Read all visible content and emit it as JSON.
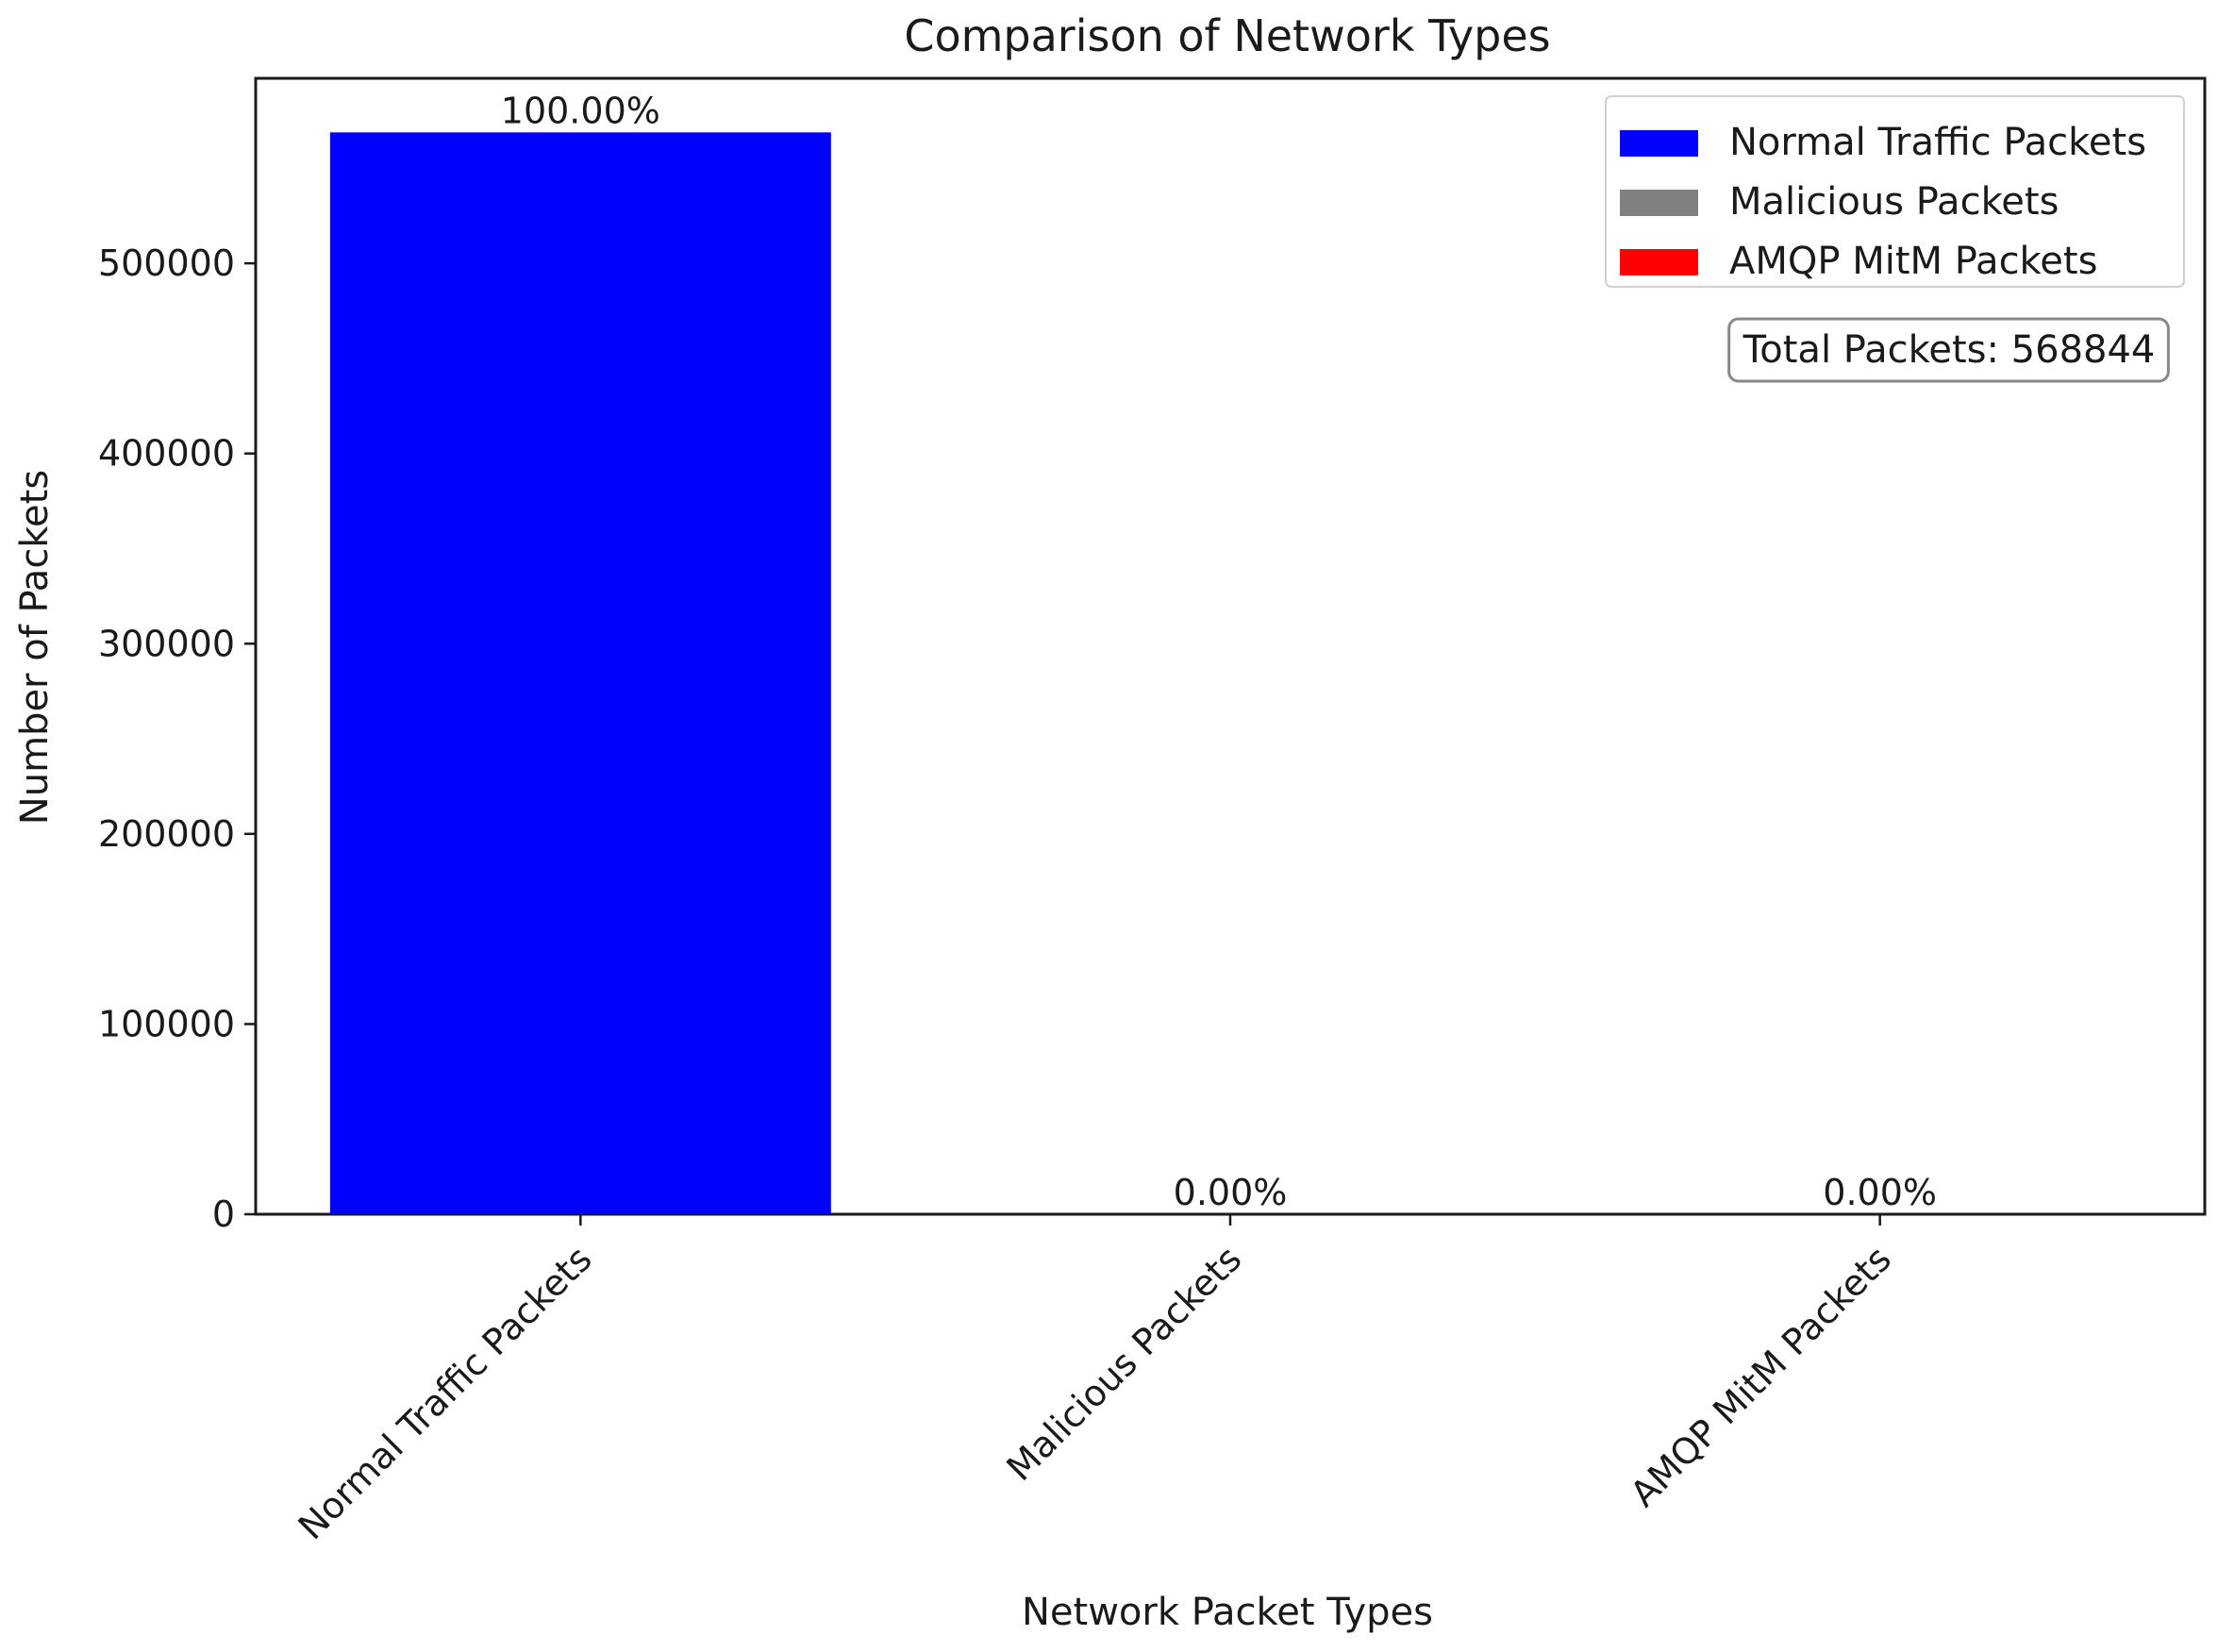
{
  "chart_data": {
    "type": "bar",
    "title": "Comparison of Network Types",
    "xlabel": "Network Packet Types",
    "ylabel": "Number of Packets",
    "categories": [
      "Normal Traffic Packets",
      "Malicious Packets",
      "AMQP MitM Packets"
    ],
    "values": [
      568844,
      0,
      0
    ],
    "bar_labels": [
      "100.00%",
      "0.00%",
      "0.00%"
    ],
    "colors": [
      "#0000ff",
      "#808080",
      "#ff0000"
    ],
    "yticks": [
      0,
      100000,
      200000,
      300000,
      400000,
      500000
    ],
    "ytick_labels": [
      "0",
      "100000",
      "200000",
      "300000",
      "400000",
      "500000"
    ],
    "ylim": [
      0,
      597286
    ],
    "grid": false,
    "legend": {
      "placement": "top-right",
      "entries": [
        "Normal Traffic Packets",
        "Malicious Packets",
        "AMQP MitM Packets"
      ]
    },
    "annotation": "Total Packets: 568844"
  }
}
